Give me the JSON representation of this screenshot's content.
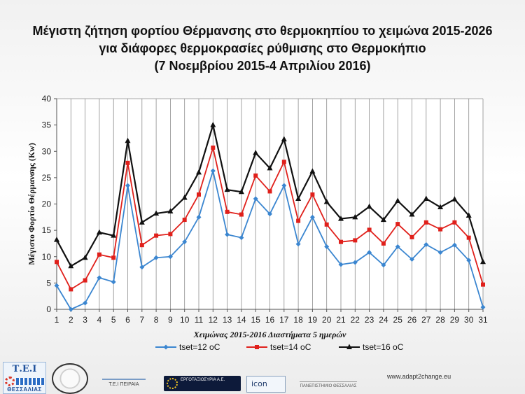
{
  "title_lines": [
    "Μέγιστη ζήτηση φορτίου Θέρμανσης στο θερμοκηπίου το χειμώνα 2015-2026",
    "για διάφορες θερμοκρασίες ρύθμισης στο Θερμοκήπιο",
    "(7 Νοεμβρίου 2015-4 Απριλίου 2016)"
  ],
  "footer": {
    "url": "www.adapt2change.eu",
    "logos": {
      "tei": "Τ.Ε.Ι",
      "tei_city": "ΘΕΣΣΑΛΙΑΣ",
      "teip": "Τ.Ε.Ι ΠΕΙΡΑΙΑ",
      "ergo": "ΕΡΓΟΤΑΞΙΟΣΥΡΙΑ Α.Ε.",
      "icon": "icon",
      "pan": "ΠΑΝΕΠΙΣΤΗΜΙΟ ΘΕΣΣΑΛΙΑΣ"
    },
    "logo_icons": [
      "tei-thessalias-logo",
      "university-seal-logo",
      "tei-piraeus-logo",
      "ergotaxiosyria-logo",
      "icon-logo",
      "university-thessaly-logo"
    ]
  },
  "chart_data": {
    "type": "line",
    "title": "",
    "xlabel": "Χειμώνας 2015-2016 Διαστήματα 5 ημερών",
    "ylabel": "Μέγιστο Φορτίο Θέρμανσης (Kw)",
    "x": [
      1,
      2,
      3,
      4,
      5,
      6,
      7,
      8,
      9,
      10,
      11,
      12,
      13,
      14,
      15,
      16,
      17,
      18,
      19,
      20,
      21,
      22,
      23,
      24,
      25,
      26,
      27,
      28,
      29,
      30,
      31
    ],
    "ylim": [
      0,
      40
    ],
    "yticks": [
      0,
      5,
      10,
      15,
      20,
      25,
      30,
      35,
      40
    ],
    "grid": "vertical",
    "legend": "bottom",
    "series": [
      {
        "name": "tset=12 oC",
        "color": "#3b86d0",
        "marker": "diamond",
        "values": [
          4.5,
          0,
          1.2,
          6,
          5.2,
          23.5,
          8,
          9.8,
          10,
          12.8,
          17.5,
          26.3,
          14.2,
          13.6,
          21,
          18.1,
          23.5,
          12.4,
          17.5,
          11.9,
          8.5,
          8.9,
          10.8,
          8.4,
          11.9,
          9.5,
          12.3,
          10.8,
          12.2,
          9.3,
          0.4
        ]
      },
      {
        "name": "tset=14 oC",
        "color": "#e0201b",
        "marker": "square",
        "values": [
          9,
          3.8,
          5.5,
          10.4,
          9.8,
          27.8,
          12.2,
          14,
          14.3,
          17,
          21.8,
          30.7,
          18.5,
          18,
          25.4,
          22.4,
          28,
          16.8,
          21.8,
          16.1,
          12.8,
          13.1,
          15.1,
          12.5,
          16.2,
          13.7,
          16.5,
          15.2,
          16.5,
          13.6,
          4.7
        ]
      },
      {
        "name": "tset=16 oC",
        "color": "#111111",
        "marker": "triangle",
        "values": [
          13.2,
          8.2,
          9.8,
          14.6,
          14,
          32,
          16.5,
          18.2,
          18.6,
          21.2,
          26,
          35,
          22.7,
          22.3,
          29.7,
          26.8,
          32.3,
          21,
          26.2,
          20.4,
          17.2,
          17.5,
          19.5,
          17,
          20.6,
          18,
          21,
          19.4,
          20.9,
          17.8,
          9
        ]
      }
    ]
  }
}
